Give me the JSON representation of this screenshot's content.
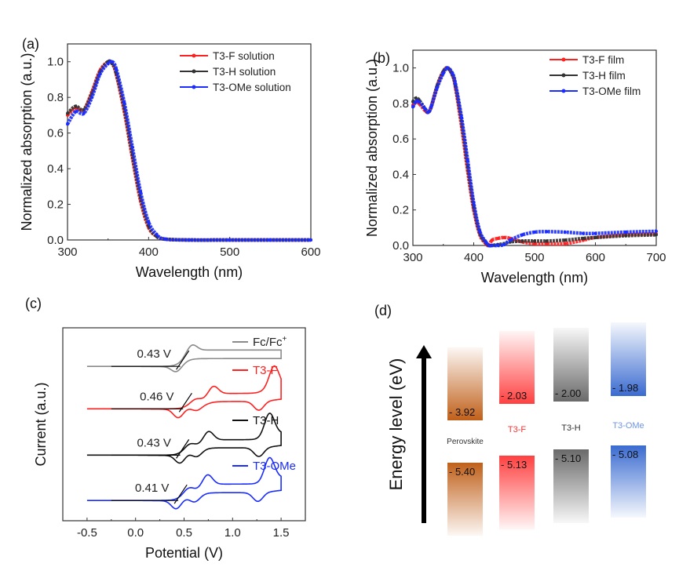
{
  "panels": {
    "a": "(a)",
    "b": "(b)",
    "c": "(c)",
    "d": "(d)"
  },
  "chart_data": [
    {
      "id": "a",
      "type": "line",
      "xlabel": "Wavelength (nm)",
      "ylabel": "Normalized absorption (a.u.)",
      "xlim": [
        300,
        600
      ],
      "ylim": [
        0,
        1.1
      ],
      "xticks": [
        300,
        400,
        500,
        600
      ],
      "yticks": [
        0.0,
        0.2,
        0.4,
        0.6,
        0.8,
        1.0
      ],
      "legend": "top-right",
      "x": [
        300,
        310,
        320,
        330,
        340,
        350,
        355,
        360,
        370,
        380,
        390,
        400,
        410,
        420,
        450,
        500,
        550,
        600
      ],
      "series": [
        {
          "name": "T3-F solution",
          "color": "#ff2020",
          "values": [
            0.7,
            0.74,
            0.73,
            0.83,
            0.95,
            1.0,
            0.99,
            0.93,
            0.72,
            0.46,
            0.22,
            0.07,
            0.02,
            0.005,
            0,
            0,
            0,
            0
          ]
        },
        {
          "name": "T3-H solution",
          "color": "#333333",
          "values": [
            0.71,
            0.75,
            0.73,
            0.82,
            0.94,
            1.0,
            0.99,
            0.94,
            0.74,
            0.48,
            0.24,
            0.08,
            0.02,
            0.005,
            0,
            0,
            0,
            0
          ]
        },
        {
          "name": "T3-OMe solution",
          "color": "#1a2cff",
          "values": [
            0.65,
            0.72,
            0.71,
            0.8,
            0.93,
            0.99,
            1.0,
            0.96,
            0.77,
            0.52,
            0.27,
            0.1,
            0.03,
            0.005,
            0,
            0,
            0,
            0
          ]
        }
      ]
    },
    {
      "id": "b",
      "type": "line",
      "xlabel": "Wavelength (nm)",
      "ylabel": "Normalized absorption (a.u.)",
      "xlim": [
        300,
        700
      ],
      "ylim": [
        0,
        1.1
      ],
      "xticks": [
        300,
        400,
        500,
        600,
        700
      ],
      "yticks": [
        0.0,
        0.2,
        0.4,
        0.6,
        0.8,
        1.0
      ],
      "legend": "top-right",
      "x": [
        300,
        305,
        310,
        320,
        325,
        330,
        340,
        350,
        357,
        365,
        370,
        380,
        390,
        400,
        410,
        420,
        425,
        430,
        440,
        450,
        460,
        480,
        500,
        520,
        550,
        580,
        600,
        650,
        700
      ],
      "series": [
        {
          "name": "T3-F film",
          "color": "#ff2020",
          "values": [
            0.79,
            0.81,
            0.8,
            0.76,
            0.75,
            0.78,
            0.9,
            0.98,
            1.0,
            0.96,
            0.89,
            0.67,
            0.42,
            0.2,
            0.06,
            0.01,
            0.0,
            0.03,
            0.04,
            0.045,
            0.04,
            0.02,
            0.01,
            0.01,
            0.01,
            0.03,
            0.045,
            0.06,
            0.065
          ]
        },
        {
          "name": "T3-H film",
          "color": "#333333",
          "values": [
            0.81,
            0.83,
            0.82,
            0.77,
            0.75,
            0.78,
            0.9,
            0.98,
            1.0,
            0.96,
            0.9,
            0.7,
            0.45,
            0.22,
            0.07,
            0.015,
            0.0,
            0.0,
            0.005,
            0.01,
            0.02,
            0.025,
            0.025,
            0.025,
            0.03,
            0.04,
            0.045,
            0.055,
            0.06
          ]
        },
        {
          "name": "T3-OMe film",
          "color": "#1a2cff",
          "values": [
            0.78,
            0.81,
            0.81,
            0.77,
            0.75,
            0.78,
            0.89,
            0.97,
            1.0,
            0.97,
            0.91,
            0.72,
            0.48,
            0.24,
            0.08,
            0.02,
            0.0,
            0.0,
            0.0,
            0.005,
            0.03,
            0.06,
            0.075,
            0.078,
            0.075,
            0.068,
            0.068,
            0.075,
            0.08
          ]
        }
      ]
    },
    {
      "id": "c",
      "type": "line",
      "xlabel": "Potential (V)",
      "ylabel": "Current (a.u.)",
      "xlim": [
        -0.75,
        1.75
      ],
      "ylim": [
        -1,
        9
      ],
      "xticks": [
        -0.5,
        0.0,
        0.5,
        1.0,
        1.5
      ],
      "legend": "right",
      "series": [
        {
          "name": "Fc/Fc+",
          "legend_main": "Fc/Fc",
          "legend_sup": "+",
          "color": "#8a8a8a",
          "onset_label": "0.43 V",
          "onset": 0.43,
          "baseline": 7.0,
          "steps": [
            [
              0.5,
              0.85
            ]
          ],
          "ox_peaks": [
            [
              0.58,
              0.35
            ]
          ],
          "red_peaks": [
            [
              0.42,
              0.3
            ]
          ]
        },
        {
          "name": "T3-F",
          "color": "#ff2020",
          "onset_label": "0.46 V",
          "onset": 0.46,
          "baseline": 4.8,
          "steps": [
            [
              0.55,
              0.4
            ],
            [
              0.75,
              0.4
            ]
          ],
          "ox_peaks": [
            [
              0.62,
              0.15
            ],
            [
              0.8,
              0.45
            ],
            [
              1.43,
              1.1
            ]
          ],
          "red_peaks": [
            [
              0.44,
              0.45
            ],
            [
              0.63,
              0.25
            ],
            [
              1.27,
              0.45
            ]
          ]
        },
        {
          "name": "T3-H",
          "color": "#111111",
          "onset_label": "0.43 V",
          "onset": 0.43,
          "baseline": 2.4,
          "steps": [
            [
              0.5,
              0.45
            ],
            [
              0.7,
              0.35
            ]
          ],
          "ox_peaks": [
            [
              0.56,
              0.2
            ],
            [
              0.75,
              0.5
            ],
            [
              1.38,
              1.1
            ]
          ],
          "red_peaks": [
            [
              0.46,
              0.45
            ],
            [
              0.63,
              0.3
            ],
            [
              1.27,
              0.45
            ]
          ]
        },
        {
          "name": "T3-OMe",
          "color": "#1a2cff",
          "onset_label": "0.41 V",
          "onset": 0.41,
          "baseline": 0.05,
          "steps": [
            [
              0.48,
              0.45
            ],
            [
              0.68,
              0.4
            ]
          ],
          "ox_peaks": [
            [
              0.55,
              0.25
            ],
            [
              0.74,
              0.55
            ],
            [
              1.38,
              1.1
            ]
          ],
          "red_peaks": [
            [
              0.42,
              0.45
            ],
            [
              0.61,
              0.3
            ],
            [
              1.26,
              0.45
            ]
          ]
        }
      ]
    },
    {
      "id": "d",
      "type": "bar",
      "ylabel": "Energy level (eV)",
      "materials": [
        {
          "name": "Perovskite",
          "color": "#c0601a",
          "label_color": "#333333",
          "lumo": -3.92,
          "homo": -5.4,
          "lumo_label": "- 3.92",
          "homo_label": "- 5.40"
        },
        {
          "name": "T3-F",
          "color": "#ff4040",
          "label_color": "#ff3030",
          "lumo": -2.03,
          "homo": -5.13,
          "lumo_label": "- 2.03",
          "homo_label": "- 5.13"
        },
        {
          "name": "T3-H",
          "color": "#6a6a6a",
          "label_color": "#333333",
          "lumo": -2.0,
          "homo": -5.1,
          "lumo_label": "- 2.00",
          "homo_label": "- 5.10"
        },
        {
          "name": "T3-OMe",
          "color": "#3a6bd0",
          "label_color": "#6f94e0",
          "lumo": -1.98,
          "homo": -5.08,
          "lumo_label": "- 1.98",
          "homo_label": "- 5.08"
        }
      ]
    }
  ]
}
